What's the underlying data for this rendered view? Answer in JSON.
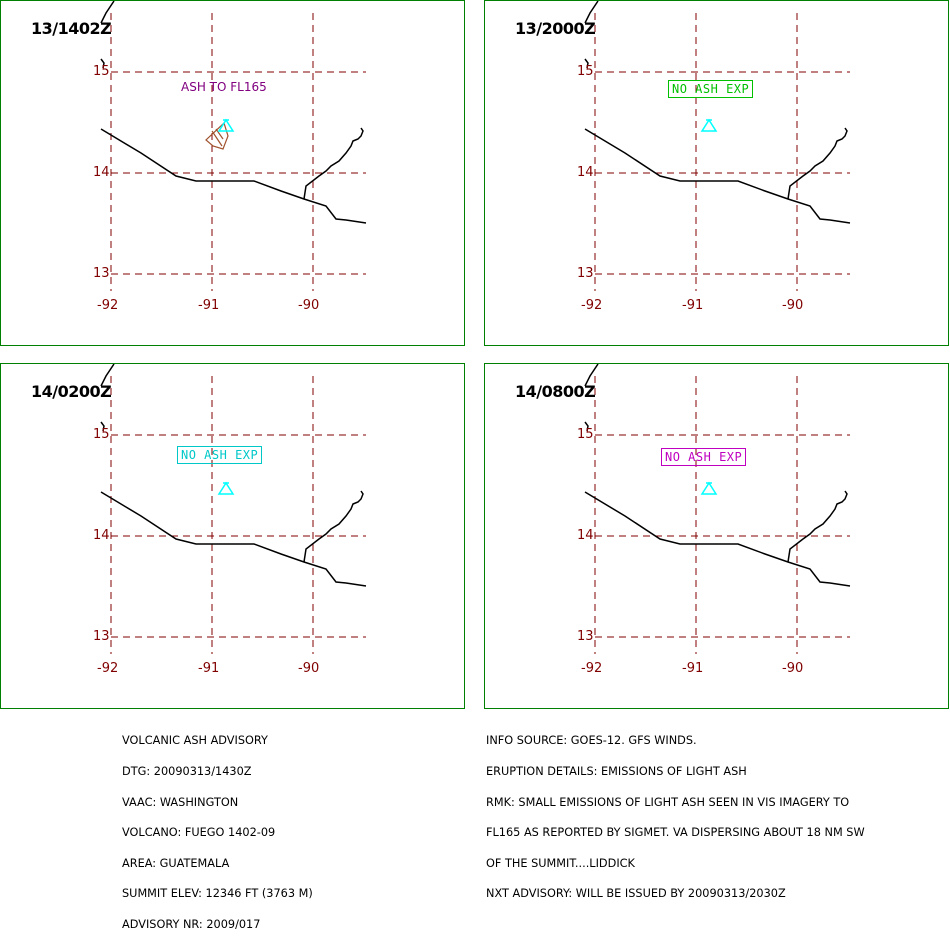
{
  "panels": [
    {
      "time": "13/1402Z",
      "label": "ASH TO FL165",
      "label_color": "#800080",
      "label_boxed": false,
      "volcano_color": "#00ffff",
      "ash_polygon": true
    },
    {
      "time": "13/2000Z",
      "label": "NO ASH EXP",
      "label_color": "#00c000",
      "label_boxed": true,
      "volcano_color": "#00ffff",
      "ash_polygon": false
    },
    {
      "time": "14/0200Z",
      "label": "NO ASH EXP",
      "label_color": "#00c8c8",
      "label_boxed": true,
      "volcano_color": "#00ffff",
      "ash_polygon": false
    },
    {
      "time": "14/0800Z",
      "label": "NO ASH EXP",
      "label_color": "#c000c0",
      "label_boxed": true,
      "volcano_color": "#00ffff",
      "ash_polygon": false
    }
  ],
  "latitudes": [
    "15",
    "14",
    "13"
  ],
  "longitudes": [
    "-92",
    "-91",
    "-90"
  ],
  "colors": {
    "grid": "#800000",
    "border": "#008000",
    "coast": "#000000",
    "ash_area": "#a0522d"
  },
  "advisory_left": [
    "VOLCANIC ASH ADVISORY",
    "DTG: 20090313/1430Z",
    "VAAC: WASHINGTON",
    "VOLCANO: FUEGO 1402-09",
    "AREA: GUATEMALA",
    "SUMMIT ELEV: 12346 FT (3763 M)",
    "ADVISORY NR: 2009/017"
  ],
  "advisory_right": [
    "INFO SOURCE: GOES-12. GFS WINDS.",
    "ERUPTION DETAILS: EMISSIONS OF LIGHT ASH",
    "RMK: SMALL EMISSIONS OF LIGHT ASH SEEN IN VIS IMAGERY TO",
    "FL165 AS REPORTED BY SIGMET. VA DISPERSING ABOUT 18 NM SW",
    "OF THE SUMMIT....LIDDICK",
    "NXT ADVISORY: WILL BE ISSUED BY 20090313/2030Z"
  ]
}
